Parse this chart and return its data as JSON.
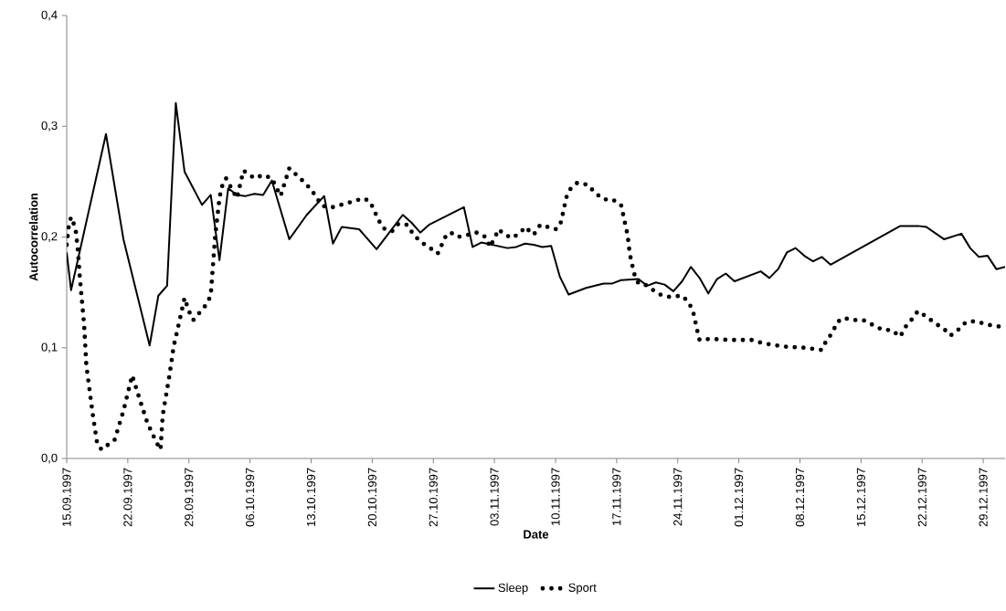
{
  "chart_data": {
    "type": "line",
    "xlabel": "Date",
    "ylabel": "Autocorrelation",
    "xlim": [
      "1997-09-15",
      "1997-12-31T12:00"
    ],
    "ylim": [
      0,
      0.4
    ],
    "yticks": [
      {
        "value": 0,
        "label": "0,0"
      },
      {
        "value": 0.1,
        "label": "0,1"
      },
      {
        "value": 0.2,
        "label": "0,2"
      },
      {
        "value": 0.3,
        "label": "0,3"
      },
      {
        "value": 0.4,
        "label": "0,4"
      }
    ],
    "xticks": [
      {
        "value": "1997-09-15",
        "label": "15.09.1997"
      },
      {
        "value": "1997-09-22",
        "label": "22.09.1997"
      },
      {
        "value": "1997-09-29",
        "label": "29.09.1997"
      },
      {
        "value": "1997-10-06",
        "label": "06.10.1997"
      },
      {
        "value": "1997-10-13",
        "label": "13.10.1997"
      },
      {
        "value": "1997-10-20",
        "label": "20.10.1997"
      },
      {
        "value": "1997-10-27",
        "label": "27.10.1997"
      },
      {
        "value": "1997-11-03",
        "label": "03.11.1997"
      },
      {
        "value": "1997-11-10",
        "label": "10.11.1997"
      },
      {
        "value": "1997-11-17",
        "label": "17.11.1997"
      },
      {
        "value": "1997-11-24",
        "label": "24.11.1997"
      },
      {
        "value": "1997-12-01",
        "label": "01.12.1997"
      },
      {
        "value": "1997-12-08",
        "label": "08.12.1997"
      },
      {
        "value": "1997-12-15",
        "label": "15.12.1997"
      },
      {
        "value": "1997-12-22",
        "label": "22.12.1997"
      },
      {
        "value": "1997-12-29",
        "label": "29.12.1997"
      }
    ],
    "grid": false,
    "legend": "bottom",
    "series": [
      {
        "name": "Sleep",
        "color": "#000000",
        "line_style": "solid",
        "x": [
          "1997-09-15",
          "1997-09-15T12:00",
          "1997-09-19T12:00",
          "1997-09-21T12:00",
          "1997-09-24T12:00",
          "1997-09-25T12:00",
          "1997-09-26T12:00",
          "1997-09-27T12:00",
          "1997-09-28T12:00",
          "1997-09-30T12:00",
          "1997-10-01T12:00",
          "1997-10-02T12:00",
          "1997-10-03T12:00",
          "1997-10-04T12:00",
          "1997-10-05T12:00",
          "1997-10-06T12:00",
          "1997-10-07T12:00",
          "1997-10-08T12:00",
          "1997-10-10T12:00",
          "1997-10-12T12:00",
          "1997-10-14T12:00",
          "1997-10-15T12:00",
          "1997-10-16T12:00",
          "1997-10-17T12:00",
          "1997-10-18T12:00",
          "1997-10-20T12:00",
          "1997-10-23T12:00",
          "1997-10-24T12:00",
          "1997-10-25T12:00",
          "1997-10-26T12:00",
          "1997-10-30T12:00",
          "1997-10-31T12:00",
          "1997-11-01T12:00",
          "1997-11-04T12:00",
          "1997-11-05T12:00",
          "1997-11-06T12:00",
          "1997-11-07T12:00",
          "1997-11-08T12:00",
          "1997-11-09T12:00",
          "1997-11-10T12:00",
          "1997-11-11T12:00",
          "1997-11-13T12:00",
          "1997-11-15T12:00",
          "1997-11-16T12:00",
          "1997-11-17T12:00",
          "1997-11-19T12:00",
          "1997-11-20T12:00",
          "1997-11-21T12:00",
          "1997-11-22T12:00",
          "1997-11-23T12:00",
          "1997-11-24T12:00",
          "1997-11-25T12:00",
          "1997-11-26T12:00",
          "1997-11-27T12:00",
          "1997-11-28T12:00",
          "1997-11-29T12:00",
          "1997-11-30T12:00",
          "1997-12-03T12:00",
          "1997-12-04T12:00",
          "1997-12-05T12:00",
          "1997-12-06T12:00",
          "1997-12-07T12:00",
          "1997-12-08T12:00",
          "1997-12-09T12:00",
          "1997-12-10T12:00",
          "1997-12-11T12:00",
          "1997-12-19T12:00",
          "1997-12-21T12:00",
          "1997-12-22T12:00",
          "1997-12-24T12:00",
          "1997-12-26T12:00",
          "1997-12-27T12:00",
          "1997-12-28T12:00",
          "1997-12-29T12:00",
          "1997-12-30T12:00",
          "1997-12-31T12:00"
        ],
        "values": [
          0.186,
          0.152,
          0.293,
          0.198,
          0.102,
          0.147,
          0.156,
          0.321,
          0.259,
          0.229,
          0.238,
          0.179,
          0.244,
          0.238,
          0.237,
          0.239,
          0.238,
          0.251,
          0.198,
          0.22,
          0.237,
          0.194,
          0.209,
          0.208,
          0.207,
          0.189,
          0.22,
          0.213,
          0.204,
          0.211,
          0.227,
          0.191,
          0.195,
          0.19,
          0.191,
          0.194,
          0.193,
          0.191,
          0.192,
          0.164,
          0.148,
          0.154,
          0.158,
          0.158,
          0.161,
          0.162,
          0.156,
          0.159,
          0.157,
          0.151,
          0.16,
          0.173,
          0.163,
          0.149,
          0.162,
          0.167,
          0.16,
          0.169,
          0.163,
          0.171,
          0.186,
          0.19,
          0.183,
          0.178,
          0.182,
          0.175,
          0.21,
          0.21,
          0.209,
          0.198,
          0.203,
          0.19,
          0.182,
          0.183,
          0.171,
          0.173
        ]
      },
      {
        "name": "Sport",
        "color": "#000000",
        "line_style": "dotted",
        "x": [
          "1997-09-15T00:00",
          "1997-09-15T06:00",
          "1997-09-15T12:00",
          "1997-09-16T00:00",
          "1997-09-16T06:00",
          "1997-09-16T12:00",
          "1997-09-17T00:00",
          "1997-09-17T06:00",
          "1997-09-18T00:00",
          "1997-09-18T12:00",
          "1997-09-19T00:00",
          "1997-09-20T12:00",
          "1997-09-21T12:00",
          "1997-09-22T12:00",
          "1997-09-23T12:00",
          "1997-09-24T06:00",
          "1997-09-25T06:00",
          "1997-09-25T18:00",
          "1997-09-26T00:00",
          "1997-09-26T18:00",
          "1997-09-27T06:00",
          "1997-09-28T00:00",
          "1997-09-28T12:00",
          "1997-09-29T00:00",
          "1997-09-29T12:00",
          "1997-10-01T00:00",
          "1997-10-01T12:00",
          "1997-10-02T00:00",
          "1997-10-02T12:00",
          "1997-10-02T18:00",
          "1997-10-03T06:00",
          "1997-10-04T12:00",
          "1997-10-05T06:00",
          "1997-10-06T12:00",
          "1997-10-07T12:00",
          "1997-10-08T12:00",
          "1997-10-09T12:00",
          "1997-10-10T12:00",
          "1997-10-11T18:00",
          "1997-10-13T00:00",
          "1997-10-14T06:00",
          "1997-10-15T12:00",
          "1997-10-17T18:00",
          "1997-10-19T00:00",
          "1997-10-19T18:00",
          "1997-10-20T18:00",
          "1997-10-21T06:00",
          "1997-10-22T06:00",
          "1997-10-23T00:00",
          "1997-10-24T00:00",
          "1997-10-24T18:00",
          "1997-10-25T12:00",
          "1997-10-27T00:00",
          "1997-10-27T12:00",
          "1997-10-28T12:00",
          "1997-10-29T00:00",
          "1997-10-29T18:00",
          "1997-10-31T00:00",
          "1997-11-01T00:00",
          "1997-11-02T00:00",
          "1997-11-02T12:00",
          "1997-11-03T00:00",
          "1997-11-03T12:00",
          "1997-11-04T00:00",
          "1997-11-05T00:00",
          "1997-11-06T00:00",
          "1997-11-06T12:00",
          "1997-11-07T12:00",
          "1997-11-08T06:00",
          "1997-11-10T00:00",
          "1997-11-10T12:00",
          "1997-11-10T18:00",
          "1997-11-11T06:00",
          "1997-11-11T18:00",
          "1997-11-12T12:00",
          "1997-11-13T18:00",
          "1997-11-14T12:00",
          "1997-11-15T12:00",
          "1997-11-16T12:00",
          "1997-11-17T12:00",
          "1997-11-17T18:00",
          "1997-11-18T00:00",
          "1997-11-18T06:00",
          "1997-11-18T12:00",
          "1997-11-19T00:00",
          "1997-11-19T12:00",
          "1997-11-20T06:00",
          "1997-11-21T00:00",
          "1997-11-22T00:00",
          "1997-11-23T00:00",
          "1997-11-24T12:00",
          "1997-11-25T06:00",
          "1997-11-25T18:00",
          "1997-11-26T06:00",
          "1997-11-26T12:00",
          "1997-11-27T18:00",
          "1997-11-30T00:00",
          "1997-12-02T12:00",
          "1997-12-03T18:00",
          "1997-12-06T06:00",
          "1997-12-08T12:00",
          "1997-12-10T12:00",
          "1997-12-11T00:00",
          "1997-12-11T18:00",
          "1997-12-12T06:00",
          "1997-12-13T00:00",
          "1997-12-14T00:00",
          "1997-12-15T06:00",
          "1997-12-16T06:00",
          "1997-12-17T12:00",
          "1997-12-18T12:00",
          "1997-12-19T12:00",
          "1997-12-20T00:00",
          "1997-12-20T18:00",
          "1997-12-21T12:00",
          "1997-12-22T12:00",
          "1997-12-23T12:00",
          "1997-12-24T12:00",
          "1997-12-25T06:00",
          "1997-12-26T06:00",
          "1997-12-27T00:00",
          "1997-12-28T00:00",
          "1997-12-29T00:00",
          "1997-12-30T00:00",
          "1997-12-31T00:00",
          "1997-12-31T12:00"
        ],
        "values": [
          0.193,
          0.211,
          0.218,
          0.208,
          0.191,
          0.164,
          0.12,
          0.084,
          0.039,
          0.013,
          0.008,
          0.017,
          0.043,
          0.075,
          0.05,
          0.032,
          0.015,
          0.008,
          0.039,
          0.074,
          0.101,
          0.127,
          0.145,
          0.133,
          0.125,
          0.139,
          0.147,
          0.2,
          0.235,
          0.245,
          0.253,
          0.235,
          0.26,
          0.253,
          0.256,
          0.253,
          0.237,
          0.262,
          0.253,
          0.243,
          0.228,
          0.227,
          0.232,
          0.235,
          0.232,
          0.215,
          0.208,
          0.205,
          0.212,
          0.211,
          0.202,
          0.196,
          0.188,
          0.185,
          0.202,
          0.204,
          0.2,
          0.202,
          0.204,
          0.2,
          0.191,
          0.199,
          0.207,
          0.203,
          0.199,
          0.204,
          0.209,
          0.202,
          0.211,
          0.207,
          0.21,
          0.218,
          0.236,
          0.244,
          0.249,
          0.247,
          0.24,
          0.234,
          0.234,
          0.229,
          0.22,
          0.211,
          0.202,
          0.185,
          0.167,
          0.158,
          0.157,
          0.153,
          0.148,
          0.146,
          0.147,
          0.141,
          0.133,
          0.115,
          0.107,
          0.108,
          0.107,
          0.107,
          0.104,
          0.101,
          0.1,
          0.098,
          0.106,
          0.114,
          0.123,
          0.127,
          0.125,
          0.125,
          0.121,
          0.116,
          0.116,
          0.11,
          0.118,
          0.125,
          0.133,
          0.128,
          0.122,
          0.117,
          0.111,
          0.117,
          0.123,
          0.124,
          0.122,
          0.12,
          0.119,
          0.122
        ]
      }
    ]
  }
}
